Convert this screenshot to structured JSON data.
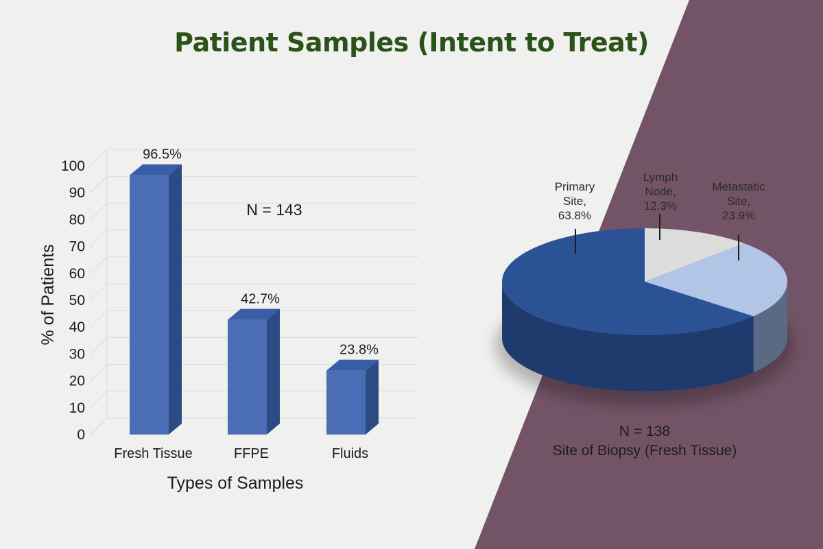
{
  "title": "Patient Samples (Intent to Treat)",
  "colors": {
    "background": "#f0f1ef",
    "panel": "#735467",
    "title": "#2b5219",
    "bar_front": "#4a6db5",
    "bar_side": "#2c4a84",
    "bar_top": "#3a5ea6",
    "pie_primary": "#2c5296",
    "pie_lymph": "#dcdcdc",
    "pie_metastatic": "#b1c5e6"
  },
  "chart_data": [
    {
      "type": "bar",
      "categories": [
        "Fresh Tissue",
        "FFPE",
        "Fluids"
      ],
      "values": [
        96.5,
        42.7,
        23.8
      ],
      "data_labels": [
        "96.5%",
        "42.7%",
        "23.8%"
      ],
      "title": "",
      "annotation": "N = 143",
      "xlabel": "Types of Samples",
      "ylabel": "% of Patients",
      "ylim": [
        0,
        100
      ],
      "yticks": [
        0,
        10,
        20,
        30,
        40,
        50,
        60,
        70,
        80,
        90,
        100
      ],
      "grid": true,
      "style": "3d"
    },
    {
      "type": "pie",
      "labels": [
        "Primary Site",
        "Lymph Node",
        "Metastatic Site"
      ],
      "values": [
        63.8,
        12.3,
        23.9
      ],
      "data_labels": [
        [
          "Primary",
          "Site,",
          "63.8%"
        ],
        [
          "Lymph",
          "Node,",
          "12.3%"
        ],
        [
          "Metastatic",
          "Site,",
          "23.9%"
        ]
      ],
      "annotation": "N = 138",
      "caption": "Site of Biopsy (Fresh Tissue)",
      "style": "3d"
    }
  ]
}
